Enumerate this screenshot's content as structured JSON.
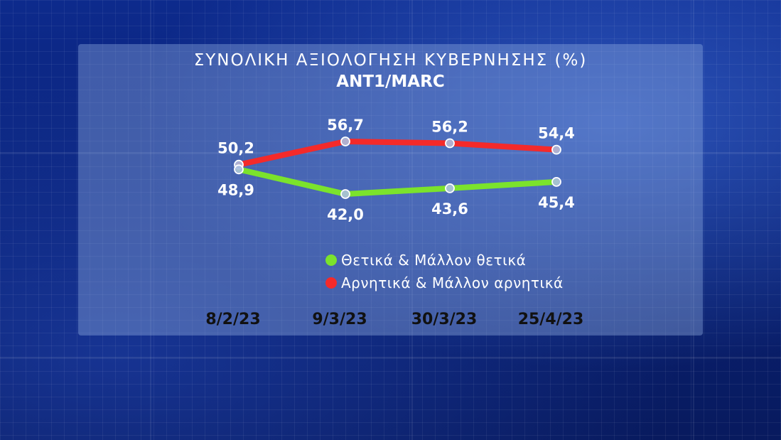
{
  "title": "ΣΥΝΟΛΙΚΗ ΑΞΙΟΛΟΓΗΣΗ ΚΥΒΕΡΝΗΣΗΣ (%)",
  "subtitle": "ANT1/MARC",
  "colors": {
    "positive": "#7be32c",
    "negative": "#f42a2a",
    "panel": "#96b4e6",
    "background": "#0a2277"
  },
  "legend": [
    {
      "label": "Θετικά  &  Μάλλον  θετικά",
      "color": "#7be32c"
    },
    {
      "label": "Αρνητικά  &  Μάλλον  αρνητικά",
      "color": "#f42a2a"
    }
  ],
  "chart_data": {
    "type": "line",
    "title": "ΣΥΝΟΛΙΚΗ ΑΞΙΟΛΟΓΗΣΗ ΚΥΒΕΡΝΗΣΗΣ (%)",
    "subtitle": "ANT1/MARC",
    "categories": [
      "8/2/23",
      "9/3/23",
      "30/3/23",
      "25/4/23"
    ],
    "series": [
      {
        "name": "Αρνητικά & Μάλλον αρνητικά",
        "color": "#f42a2a",
        "values": [
          50.2,
          56.7,
          56.2,
          54.4
        ],
        "labels": [
          "50,2",
          "56,7",
          "56,2",
          "54,4"
        ],
        "label_position": "above"
      },
      {
        "name": "Θετικά & Μάλλον θετικά",
        "color": "#7be32c",
        "values": [
          48.9,
          42.0,
          43.6,
          45.4
        ],
        "labels": [
          "48,9",
          "42,0",
          "43,6",
          "45,4"
        ],
        "label_position": "below"
      }
    ],
    "grid": false,
    "legend_position": "bottom-center"
  }
}
